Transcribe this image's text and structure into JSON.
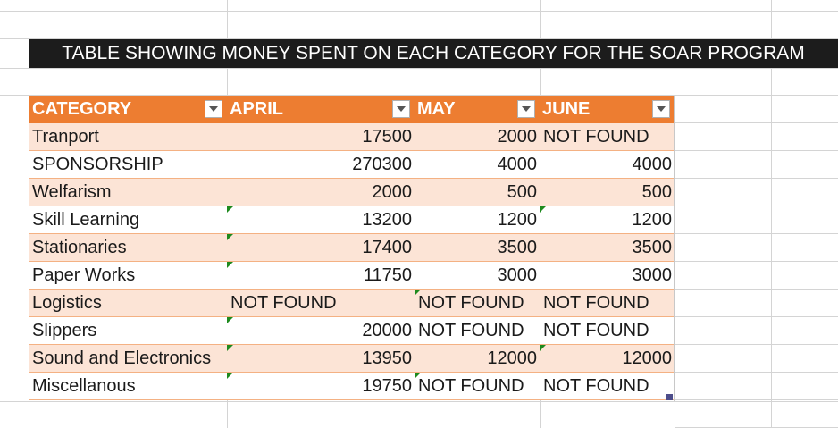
{
  "title": "TABLE SHOWING MONEY SPENT ON EACH CATEGORY FOR THE SOAR PROGRAM",
  "headers": [
    "CATEGORY",
    "APRIL",
    "MAY",
    "JUNE"
  ],
  "rows": [
    {
      "category": "Tranport",
      "april": "17500",
      "may": "2000",
      "june": "NOT FOUND"
    },
    {
      "category": "SPONSORSHIP",
      "april": "270300",
      "may": "4000",
      "june": "4000"
    },
    {
      "category": "Welfarism",
      "april": "2000",
      "may": "500",
      "june": "500"
    },
    {
      "category": "Skill Learning",
      "april": "13200",
      "may": "1200",
      "june": "1200"
    },
    {
      "category": "Stationaries",
      "april": "17400",
      "may": "3500",
      "june": "3500"
    },
    {
      "category": "Paper Works",
      "april": "11750",
      "may": "3000",
      "june": "3000"
    },
    {
      "category": "Logistics",
      "april": "NOT FOUND",
      "may": "NOT FOUND",
      "june": "NOT FOUND"
    },
    {
      "category": "Slippers",
      "april": "20000",
      "may": "NOT FOUND",
      "june": "NOT FOUND"
    },
    {
      "category": "Sound and Electronics",
      "april": "13950",
      "may": "12000",
      "june": "12000"
    },
    {
      "category": "Miscellanous",
      "april": "19750",
      "may": "NOT FOUND",
      "june": "NOT FOUND"
    }
  ],
  "colors": {
    "header_bg": "#ed7d31",
    "band_bg": "#fce4d6",
    "title_bg": "#1c1c1c",
    "error_indicator": "#1e8a1e"
  }
}
